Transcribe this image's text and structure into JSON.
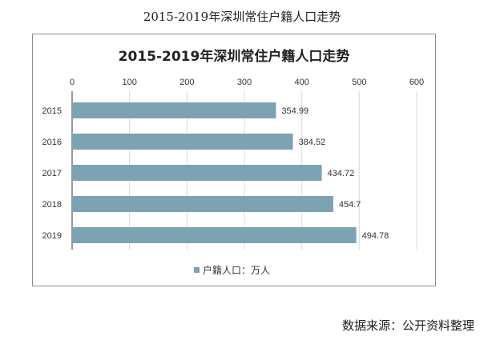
{
  "page_title": "2015-2019年深圳常住户籍人口走势",
  "source_text": "数据来源：公开资料整理",
  "colors": {
    "bar": "#7ba3b3",
    "grid": "#d9d9d9",
    "axis": "#333333"
  },
  "chart_data": {
    "type": "bar",
    "orientation": "horizontal",
    "title": "2015-2019年深圳常住户籍人口走势",
    "categories": [
      "2015",
      "2016",
      "2017",
      "2018",
      "2019"
    ],
    "series": [
      {
        "name": "户籍人口：万人",
        "values": [
          354.99,
          384.52,
          434.72,
          454.7,
          494.78
        ]
      }
    ],
    "data_labels": [
      "354.99",
      "384.52",
      "434.72",
      "454.7",
      "494.78"
    ],
    "xlim": [
      0,
      600
    ],
    "xticks": [
      0,
      100,
      200,
      300,
      400,
      500,
      600
    ],
    "x_axis_position": "top",
    "grid": true,
    "legend_position": "bottom"
  }
}
